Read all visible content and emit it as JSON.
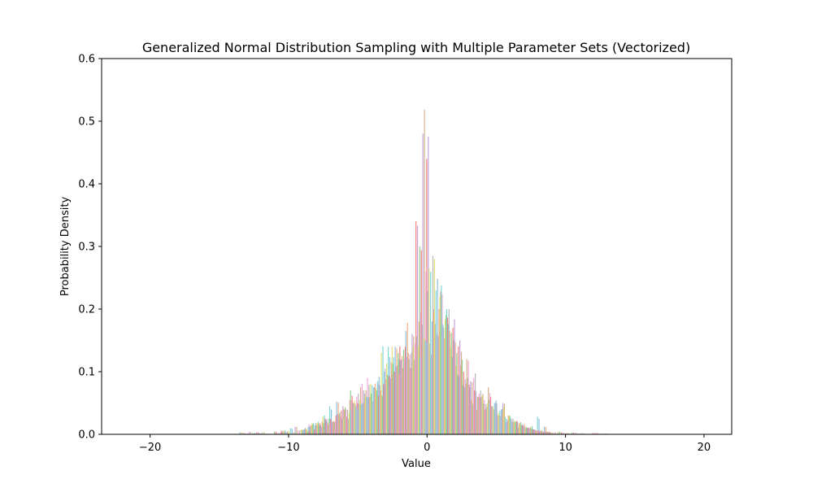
{
  "chart_data": {
    "type": "bar",
    "title": "Generalized Normal Distribution Sampling with Multiple Parameter Sets (Vectorized)",
    "xlabel": "Value",
    "ylabel": "Probability Density",
    "xlim": [
      -23.5,
      22
    ],
    "ylim": [
      0,
      0.6
    ],
    "x_ticks": [
      -20,
      -10,
      0,
      10,
      20
    ],
    "x_tick_labels": [
      "−20",
      "−10",
      "0",
      "10",
      "20"
    ],
    "y_ticks": [
      0.0,
      0.1,
      0.2,
      0.3,
      0.4,
      0.5,
      0.6
    ],
    "y_tick_labels": [
      "0.0",
      "0.1",
      "0.2",
      "0.3",
      "0.4",
      "0.5",
      "0.6"
    ],
    "grid": false,
    "legend": "none",
    "colors": [
      "#8fbfe0",
      "#f4b183",
      "#90d090",
      "#f08080",
      "#c5a3d9",
      "#d2b48c",
      "#f4a6d7",
      "#b8b8b8",
      "#e2e27a",
      "#7fd6d6"
    ],
    "x": [
      -13.0,
      -12.0,
      -10.5,
      -10.0,
      -9.0,
      -8.5,
      -8.0,
      -7.5,
      -7.0,
      -6.5,
      -6.0,
      -5.5,
      -5.0,
      -4.5,
      -4.0,
      -3.5,
      -3.0,
      -2.5,
      -2.0,
      -1.5,
      -1.0,
      -0.5,
      0.0,
      0.5,
      1.0,
      1.5,
      2.0,
      2.5,
      3.0,
      3.5,
      4.0,
      4.5,
      5.0,
      5.5,
      6.0,
      6.5,
      7.0,
      7.5,
      8.0,
      8.5,
      9.0,
      10.0,
      11.0,
      12.5
    ],
    "series": [
      {
        "values": [
          0.003,
          0.002,
          0.004,
          0.006,
          0.012,
          0.007,
          0.016,
          0.018,
          0.028,
          0.045,
          0.052,
          0.04,
          0.07,
          0.05,
          0.065,
          0.06,
          0.08,
          0.105,
          0.14,
          0.12,
          0.165,
          0.135,
          0.3,
          0.44,
          0.2,
          0.228,
          0.185,
          0.125,
          0.08,
          0.07,
          0.045,
          0.05,
          0.055,
          0.035,
          0.05,
          0.022,
          0.012,
          0.01,
          0.012,
          0.028,
          0.012,
          0.004,
          0.003,
          0.002
        ]
      },
      {
        "values": [
          0.002,
          0.003,
          0.002,
          0.004,
          0.006,
          0.01,
          0.018,
          0.014,
          0.022,
          0.02,
          0.035,
          0.028,
          0.05,
          0.075,
          0.09,
          0.075,
          0.13,
          0.14,
          0.14,
          0.125,
          0.12,
          0.34,
          0.48,
          0.145,
          0.16,
          0.17,
          0.14,
          0.095,
          0.075,
          0.055,
          0.06,
          0.04,
          0.045,
          0.03,
          0.02,
          0.025,
          0.015,
          0.01,
          0.008,
          0.006,
          0.004,
          0.003,
          0.002,
          0.002
        ]
      },
      {
        "values": [
          0.001,
          0.002,
          0.003,
          0.005,
          0.008,
          0.012,
          0.014,
          0.02,
          0.025,
          0.03,
          0.045,
          0.055,
          0.06,
          0.07,
          0.08,
          0.085,
          0.1,
          0.115,
          0.13,
          0.14,
          0.16,
          0.18,
          0.26,
          0.285,
          0.22,
          0.2,
          0.15,
          0.11,
          0.09,
          0.07,
          0.06,
          0.075,
          0.05,
          0.04,
          0.03,
          0.02,
          0.015,
          0.01,
          0.006,
          0.004,
          0.003,
          0.002,
          0.001,
          0.001
        ]
      },
      {
        "values": [
          0.004,
          0.003,
          0.006,
          0.01,
          0.008,
          0.015,
          0.02,
          0.025,
          0.02,
          0.032,
          0.04,
          0.05,
          0.055,
          0.06,
          0.075,
          0.07,
          0.095,
          0.1,
          0.12,
          0.13,
          0.145,
          0.175,
          0.265,
          0.23,
          0.175,
          0.165,
          0.13,
          0.1,
          0.085,
          0.06,
          0.055,
          0.045,
          0.035,
          0.028,
          0.02,
          0.018,
          0.012,
          0.008,
          0.005,
          0.004,
          0.003,
          0.002,
          0.002,
          0.001
        ]
      },
      {
        "values": [
          0.002,
          0.001,
          0.002,
          0.003,
          0.005,
          0.008,
          0.012,
          0.016,
          0.02,
          0.025,
          0.035,
          0.045,
          0.05,
          0.06,
          0.07,
          0.08,
          0.09,
          0.11,
          0.12,
          0.13,
          0.14,
          0.15,
          0.18,
          0.2,
          0.19,
          0.17,
          0.15,
          0.12,
          0.09,
          0.07,
          0.05,
          0.05,
          0.04,
          0.03,
          0.02,
          0.015,
          0.01,
          0.006,
          0.004,
          0.003,
          0.002,
          0.001,
          0.001,
          0.001
        ]
      }
    ]
  }
}
